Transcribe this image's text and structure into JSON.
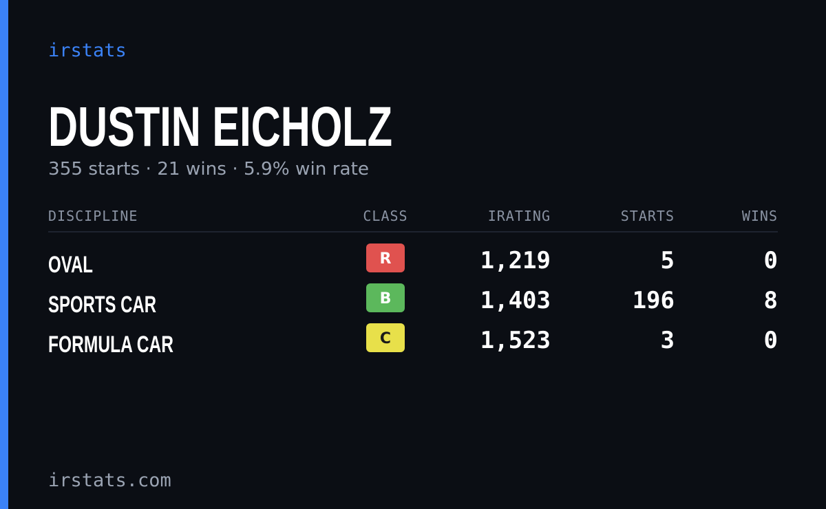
{
  "brand": "irstats",
  "driver": {
    "name": "DUSTIN EICHOLZ",
    "summary": "355 starts · 21 wins · 5.9% win rate"
  },
  "table": {
    "headers": [
      "DISCIPLINE",
      "CLASS",
      "IRATING",
      "STARTS",
      "WINS"
    ],
    "rows": [
      [
        "OVAL",
        "R",
        "1,219",
        "5",
        "0"
      ],
      [
        "SPORTS CAR",
        "B",
        "1,403",
        "196",
        "8"
      ],
      [
        "FORMULA CAR",
        "C",
        "1,523",
        "3",
        "0"
      ]
    ]
  },
  "footer": "irstats.com"
}
